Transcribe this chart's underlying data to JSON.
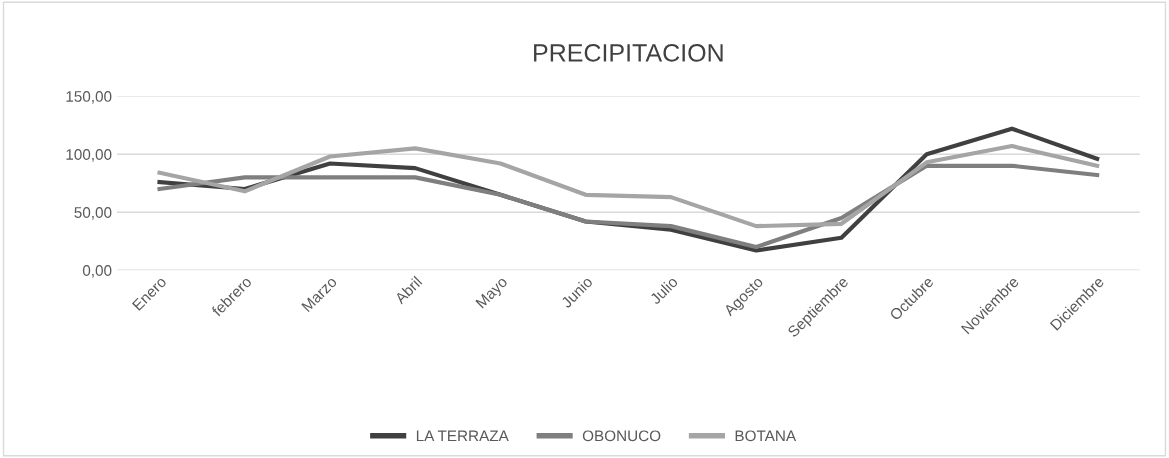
{
  "chart_data": {
    "type": "line",
    "title": "PRECIPITACION",
    "categories": [
      "Enero",
      "febrero",
      "Marzo",
      "Abril",
      "Mayo",
      "Junio",
      "Julio",
      "Agosto",
      "Septiembre",
      "Octubre",
      "Noviembre",
      "Diciembre"
    ],
    "series": [
      {
        "name": "LA TERRAZA",
        "color": "#404040",
        "values": [
          76,
          70,
          92,
          88,
          65,
          42,
          35,
          17,
          28,
          100,
          122,
          96
        ]
      },
      {
        "name": "OBONUCO",
        "color": "#7f7f7f",
        "values": [
          70,
          80,
          80,
          80,
          65,
          42,
          38,
          20,
          45,
          90,
          90,
          82
        ]
      },
      {
        "name": "BOTANA",
        "color": "#a5a5a5",
        "values": [
          84,
          68,
          98,
          105,
          92,
          65,
          63,
          38,
          40,
          93,
          107,
          90
        ]
      }
    ],
    "ylim": [
      0,
      150
    ],
    "yticks": [
      {
        "value": 0,
        "label": "0,00"
      },
      {
        "value": 50,
        "label": "50,00"
      },
      {
        "value": 100,
        "label": "100,00"
      },
      {
        "value": 150,
        "label": "150,00"
      }
    ],
    "grid": "y",
    "legend": "bottom",
    "marker": "none",
    "line_style": "solid"
  }
}
